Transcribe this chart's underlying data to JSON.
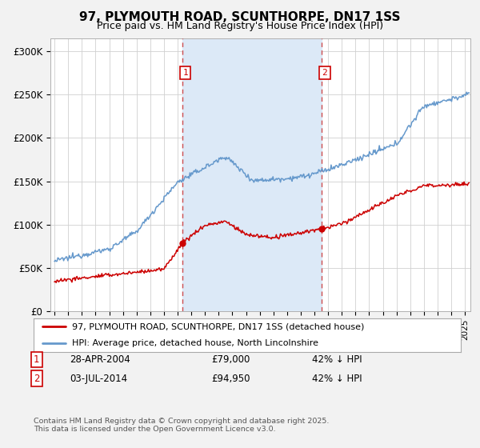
{
  "title": "97, PLYMOUTH ROAD, SCUNTHORPE, DN17 1SS",
  "subtitle": "Price paid vs. HM Land Registry's House Price Index (HPI)",
  "ylabel_ticks": [
    "£0",
    "£50K",
    "£100K",
    "£150K",
    "£200K",
    "£250K",
    "£300K"
  ],
  "ytick_vals": [
    0,
    50000,
    100000,
    150000,
    200000,
    250000,
    300000
  ],
  "ylim": [
    0,
    315000
  ],
  "xlim_start": 1994.7,
  "xlim_end": 2025.4,
  "sale1_date": 2004.32,
  "sale1_price": 79000,
  "sale1_label": "28-APR-2004",
  "sale1_value_str": "£79,000",
  "sale1_hpi_str": "42% ↓ HPI",
  "sale2_date": 2014.5,
  "sale2_price": 94950,
  "sale2_label": "03-JUL-2014",
  "sale2_value_str": "£94,950",
  "sale2_hpi_str": "42% ↓ HPI",
  "shaded_color": "#dce9f7",
  "line1_color": "#cc0000",
  "line2_color": "#6699cc",
  "legend1_label": "97, PLYMOUTH ROAD, SCUNTHORPE, DN17 1SS (detached house)",
  "legend2_label": "HPI: Average price, detached house, North Lincolnshire",
  "footnote": "Contains HM Land Registry data © Crown copyright and database right 2025.\nThis data is licensed under the Open Government Licence v3.0.",
  "background_color": "#f2f2f2",
  "plot_bg_color": "#ffffff",
  "title_fontsize": 11,
  "subtitle_fontsize": 9
}
